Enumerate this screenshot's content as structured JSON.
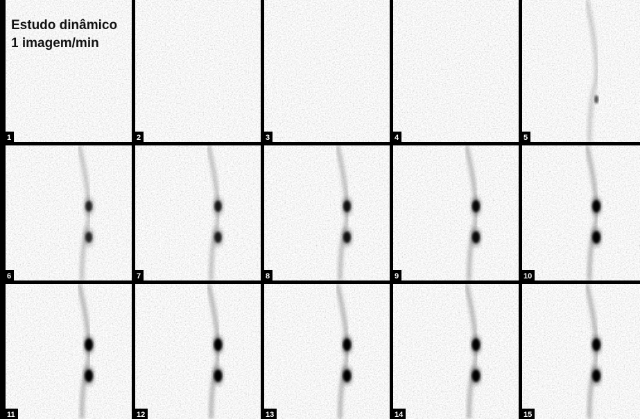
{
  "caption": {
    "line1": "Estudo dinâmico",
    "line2": "1 imagem/min"
  },
  "frames": [
    {
      "label": "1"
    },
    {
      "label": "2"
    },
    {
      "label": "3"
    },
    {
      "label": "4"
    },
    {
      "label": "5"
    },
    {
      "label": "6"
    },
    {
      "label": "7"
    },
    {
      "label": "8"
    },
    {
      "label": "9"
    },
    {
      "label": "10"
    },
    {
      "label": "11"
    },
    {
      "label": "12"
    },
    {
      "label": "13"
    },
    {
      "label": "14"
    },
    {
      "label": "15"
    }
  ]
}
